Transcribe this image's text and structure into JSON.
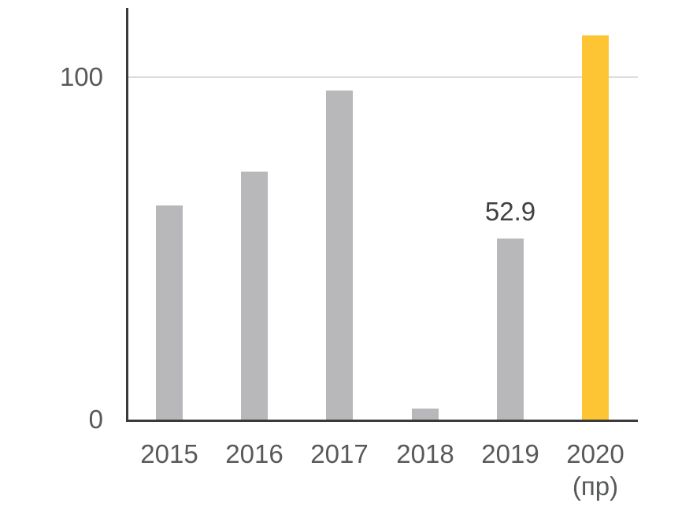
{
  "chart_data": {
    "type": "bar",
    "title": "",
    "xlabel": "",
    "ylabel": "",
    "categories": [
      "2015",
      "2016",
      "2017",
      "2018",
      "2019",
      "2020 (пр)"
    ],
    "points": [
      {
        "label": "2015",
        "value": 62.5
      },
      {
        "label": "2016",
        "value": 72.4
      },
      {
        "label": "2017",
        "value": 96.1
      },
      {
        "label": "2018",
        "value": 3.5
      },
      {
        "label": "2019",
        "value": 52.9,
        "value_label": "52.9"
      },
      {
        "label": "2020",
        "sublabel": "(пр)",
        "value": 112.2,
        "highlight": true
      }
    ],
    "yticks": [
      {
        "label": "100",
        "value": 100
      },
      {
        "label": "0",
        "value": 0
      }
    ],
    "gridlines": [
      100
    ],
    "ylim": [
      0,
      115
    ],
    "legend_position": "none",
    "grid": "single horizontal line at 100",
    "colors": {
      "bar": "#B8B8BA",
      "highlight": "#FDC433",
      "axis": "#3A3A3C",
      "gridline": "#DCDCDC",
      "tick_text": "#58595B",
      "value_text": "#414042"
    }
  }
}
